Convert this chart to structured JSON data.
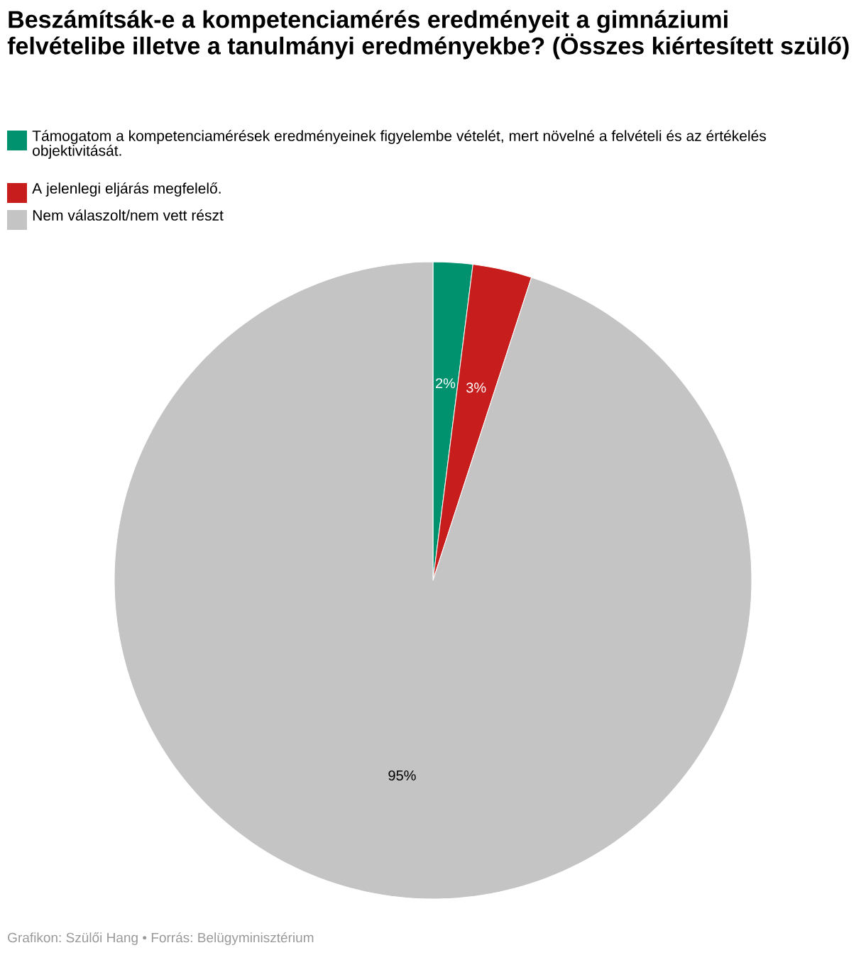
{
  "chart_data": {
    "type": "pie",
    "title": "Beszámítsák-e a kompetenciamérés eredményeit a gimnáziumi felvételibe illetve a tanulmányi eredményekbe? (Összes kiértesített szülő)",
    "categories": [
      "Támogatom a kompetenciamérések eredményeinek figyelembe vételét, mert növelné a felvételi és az értékelés objektivitását.",
      "A jelenlegi eljárás megfelelő.",
      "Nem válaszolt/nem vett részt"
    ],
    "values": [
      2,
      3,
      95
    ],
    "colors": [
      "#00916e",
      "#c71e1d",
      "#c4c4c4"
    ],
    "value_labels": [
      "2%",
      "3%",
      "95%"
    ],
    "legend": "top left",
    "annotations": [
      "Grafikon: Szülői Hang • Forrás: Belügyminisztérium"
    ]
  }
}
